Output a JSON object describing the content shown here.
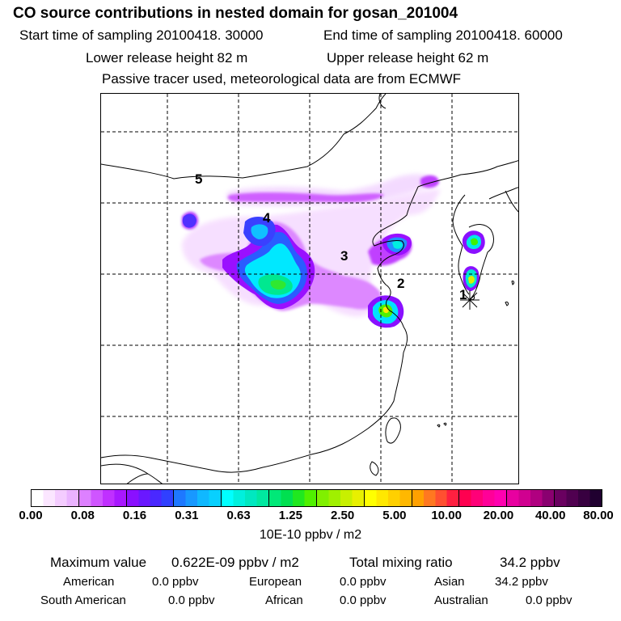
{
  "header": {
    "title": "CO  source contributions in nested domain for gosan_201004",
    "start_time": "Start time of sampling 20100418. 30000",
    "end_time": "End time of sampling 20100418. 60000",
    "lower_release": "Lower release height   82 m",
    "upper_release": "Upper release height   62 m",
    "tracer_note": "Passive tracer used, meteorological data are from ECMWF"
  },
  "map": {
    "region_labels": [
      "1",
      "2",
      "3",
      "4",
      "5"
    ],
    "receptor_marker": "asterisk",
    "grid": "dashed"
  },
  "colorbar": {
    "tick_labels": [
      "0.00",
      "0.08",
      "0.16",
      "0.31",
      "0.63",
      "1.25",
      "2.50",
      "5.00",
      "10.00",
      "20.00",
      "40.00",
      "80.00"
    ],
    "units": "10E-10 ppbv / m2",
    "colors": [
      [
        "#ffffff",
        "#fbe6ff",
        "#f4ccff",
        "#eab3ff"
      ],
      [
        "#dd80ff",
        "#cf55ff",
        "#c030ff",
        "#a818ff"
      ],
      [
        "#8a10ff",
        "#6a18ff",
        "#4a28ff",
        "#3040ff"
      ],
      [
        "#1e78ff",
        "#1898ff",
        "#10b8ff",
        "#08d0ff"
      ],
      [
        "#00ffff",
        "#00f0dd",
        "#00e8c0",
        "#00e8a0"
      ],
      [
        "#00e878",
        "#00e050",
        "#20e820",
        "#50f000"
      ],
      [
        "#80f000",
        "#a0f000",
        "#c8f000",
        "#e8f000"
      ],
      [
        "#ffff00",
        "#ffe800",
        "#ffd000",
        "#ffb800"
      ],
      [
        "#ffa000",
        "#ff7820",
        "#ff5030",
        "#ff2040"
      ],
      [
        "#ff0050",
        "#ff0078",
        "#ff0098",
        "#ff00b0"
      ],
      [
        "#e800a0",
        "#d00090",
        "#b00080",
        "#8a0070"
      ],
      [
        "#6a0060",
        "#500050",
        "#380040",
        "#200030"
      ]
    ]
  },
  "stats": {
    "max_label": "Maximum value",
    "max_value": "0.622E-09 ppbv / m2",
    "total_label": "Total mixing ratio",
    "total_value": "34.2 ppbv",
    "regions": [
      {
        "name": "American",
        "value": "0.0 ppbv"
      },
      {
        "name": "European",
        "value": "0.0 ppbv"
      },
      {
        "name": "Asian",
        "value": "34.2 ppbv"
      },
      {
        "name": "South American",
        "value": "0.0 ppbv"
      },
      {
        "name": "African",
        "value": "0.0 ppbv"
      },
      {
        "name": "Australian",
        "value": "0.0 ppbv"
      }
    ]
  }
}
